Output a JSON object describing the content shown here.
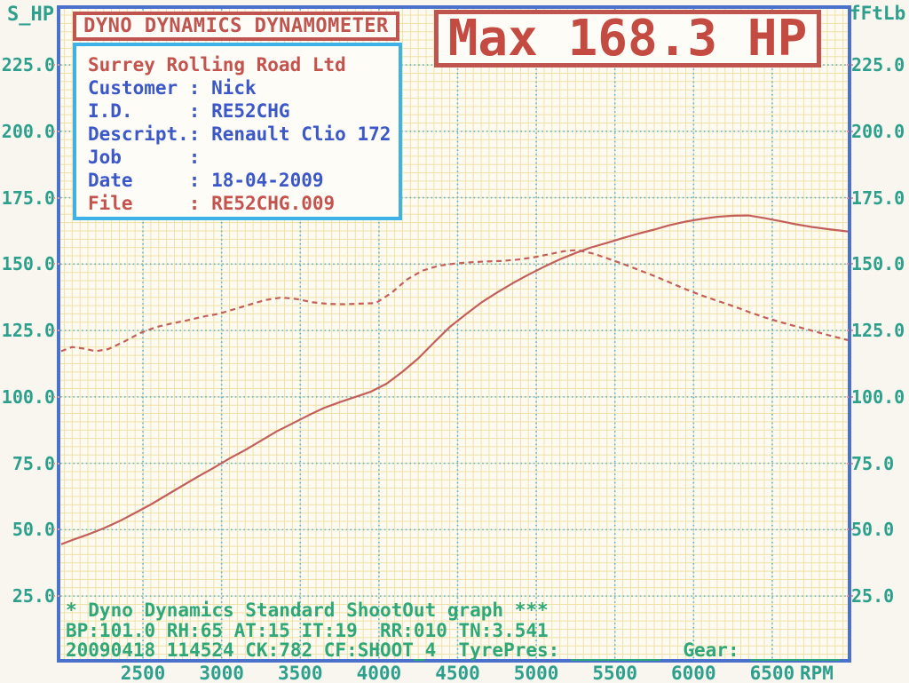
{
  "axes": {
    "left_unit": "S_HP",
    "right_unit": "fFtLb",
    "x_unit": "RPM"
  },
  "title_box": {
    "text": "DYNO DYNAMICS DYNAMOMETER"
  },
  "info_box": {
    "company": "Surrey Rolling Road Ltd",
    "rows": [
      {
        "label": "Customer",
        "value": "Nick",
        "color": "blue"
      },
      {
        "label": "I.D.",
        "value": "RE52CHG",
        "color": "blue"
      },
      {
        "label": "Descript.",
        "value": "Renault Clio 172",
        "color": "blue"
      },
      {
        "label": "Job",
        "value": "",
        "color": "blue"
      },
      {
        "label": "Date",
        "value": "18-04-2009",
        "color": "blue"
      },
      {
        "label": "File",
        "value": "RE52CHG.009",
        "color": "red"
      }
    ]
  },
  "max_box": {
    "text": "Max 168.3 HP"
  },
  "footer": {
    "line1": "* Dyno Dynamics Standard ShootOut graph ***",
    "line2": "BP:101.0 RH:65 AT:15 IT:19  RR:010 TN:3.541",
    "line3": "20090418 114524 CK:782 CF:SHOOT_4  TyrePres: ________  Gear: ________"
  },
  "colors": {
    "curve": "#c35f5b",
    "grid_minor": "#f0e1a8",
    "grid_major": "#58b2d0",
    "plot_border": "#4a72cc",
    "teal_text": "#2ca08c",
    "green_text": "#2ea878",
    "blue_text": "#3b57c8",
    "red_text": "#c4534e"
  },
  "chart_data": {
    "type": "line",
    "title": "Dyno Dynamics Standard ShootOut graph",
    "xlabel": "RPM",
    "x_range": [
      1975,
      6980
    ],
    "x_major_ticks": [
      2500,
      3000,
      3500,
      4000,
      4500,
      5000,
      5500,
      6000,
      6500
    ],
    "y_left_label": "S_HP",
    "y_right_label": "fFtLb",
    "y_range": [
      1.3,
      246.1
    ],
    "y_major_ticks": [
      25,
      50,
      75,
      100,
      125,
      150,
      175,
      200,
      225
    ],
    "grid": "minor yellow + dotted cyan major",
    "legend_position": "none",
    "max_annotation": "Max 168.3 HP",
    "series": [
      {
        "name": "power_hp",
        "style": "solid",
        "points": [
          [
            1980,
            44.5
          ],
          [
            2060,
            46.3
          ],
          [
            2150,
            48.2
          ],
          [
            2250,
            50.5
          ],
          [
            2350,
            53.2
          ],
          [
            2450,
            56.3
          ],
          [
            2550,
            59.5
          ],
          [
            2650,
            63.0
          ],
          [
            2750,
            66.5
          ],
          [
            2850,
            70.0
          ],
          [
            2950,
            73.3
          ],
          [
            3050,
            76.8
          ],
          [
            3150,
            80.0
          ],
          [
            3250,
            83.5
          ],
          [
            3350,
            87.0
          ],
          [
            3450,
            90.0
          ],
          [
            3550,
            93.0
          ],
          [
            3650,
            95.8
          ],
          [
            3750,
            98.0
          ],
          [
            3850,
            100.0
          ],
          [
            3950,
            102.0
          ],
          [
            4050,
            105.0
          ],
          [
            4150,
            109.5
          ],
          [
            4250,
            114.5
          ],
          [
            4350,
            120.5
          ],
          [
            4450,
            126.3
          ],
          [
            4550,
            131.0
          ],
          [
            4650,
            135.5
          ],
          [
            4750,
            139.3
          ],
          [
            4850,
            142.8
          ],
          [
            4950,
            146.0
          ],
          [
            5050,
            149.0
          ],
          [
            5150,
            151.8
          ],
          [
            5250,
            154.2
          ],
          [
            5350,
            156.3
          ],
          [
            5450,
            158.0
          ],
          [
            5550,
            159.8
          ],
          [
            5650,
            161.5
          ],
          [
            5750,
            163.0
          ],
          [
            5850,
            164.7
          ],
          [
            5950,
            166.0
          ],
          [
            6050,
            167.0
          ],
          [
            6150,
            167.8
          ],
          [
            6250,
            168.2
          ],
          [
            6350,
            168.3
          ],
          [
            6450,
            167.3
          ],
          [
            6550,
            166.2
          ],
          [
            6650,
            165.0
          ],
          [
            6750,
            164.0
          ],
          [
            6850,
            163.2
          ],
          [
            6950,
            162.5
          ],
          [
            6980,
            162.3
          ]
        ]
      },
      {
        "name": "torque_fftlb",
        "style": "dashed",
        "points": [
          [
            1980,
            117.2
          ],
          [
            2050,
            118.8
          ],
          [
            2120,
            118.2
          ],
          [
            2200,
            117.2
          ],
          [
            2280,
            118.0
          ],
          [
            2380,
            120.8
          ],
          [
            2480,
            124.0
          ],
          [
            2580,
            126.2
          ],
          [
            2680,
            127.6
          ],
          [
            2780,
            128.8
          ],
          [
            2880,
            130.2
          ],
          [
            2980,
            131.3
          ],
          [
            3080,
            133.0
          ],
          [
            3180,
            134.8
          ],
          [
            3280,
            136.5
          ],
          [
            3380,
            137.4
          ],
          [
            3480,
            136.8
          ],
          [
            3580,
            135.6
          ],
          [
            3680,
            135.0
          ],
          [
            3780,
            134.9
          ],
          [
            3880,
            135.1
          ],
          [
            3980,
            135.3
          ],
          [
            4080,
            139.2
          ],
          [
            4180,
            144.3
          ],
          [
            4280,
            147.6
          ],
          [
            4380,
            149.4
          ],
          [
            4480,
            150.2
          ],
          [
            4580,
            150.7
          ],
          [
            4680,
            151.0
          ],
          [
            4780,
            151.2
          ],
          [
            4880,
            151.7
          ],
          [
            4980,
            152.5
          ],
          [
            5080,
            153.7
          ],
          [
            5180,
            154.9
          ],
          [
            5260,
            155.3
          ],
          [
            5360,
            154.0
          ],
          [
            5460,
            152.0
          ],
          [
            5560,
            149.9
          ],
          [
            5660,
            147.6
          ],
          [
            5760,
            145.3
          ],
          [
            5860,
            142.8
          ],
          [
            5960,
            140.3
          ],
          [
            6060,
            138.0
          ],
          [
            6160,
            136.0
          ],
          [
            6260,
            134.0
          ],
          [
            6360,
            131.8
          ],
          [
            6460,
            129.8
          ],
          [
            6560,
            128.0
          ],
          [
            6660,
            126.4
          ],
          [
            6760,
            124.8
          ],
          [
            6860,
            123.2
          ],
          [
            6960,
            121.7
          ],
          [
            6980,
            121.4
          ]
        ]
      }
    ]
  }
}
